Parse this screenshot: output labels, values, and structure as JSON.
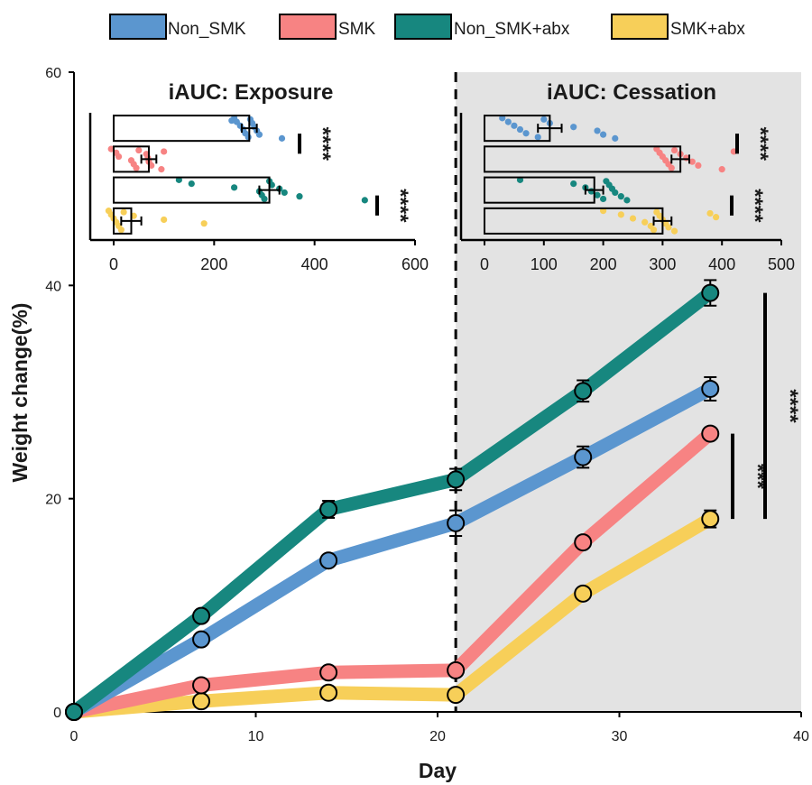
{
  "legend": [
    {
      "name": "Non_SMK",
      "color": "#5b96cf"
    },
    {
      "name": "SMK",
      "color": "#f78383"
    },
    {
      "name": "Non_SMK+abx",
      "color": "#17877f"
    },
    {
      "name": "SMK+abx",
      "color": "#f7cf59"
    }
  ],
  "chart_data": [
    {
      "type": "line",
      "xlabel": "Day",
      "ylabel": "Weight change(%)",
      "xlim": [
        0,
        40
      ],
      "ylim": [
        0,
        60
      ],
      "xticks": [
        0,
        10,
        20,
        30,
        40
      ],
      "yticks": [
        0,
        20,
        40,
        60
      ],
      "x": [
        0,
        7,
        14,
        21,
        28,
        35
      ],
      "event_line_day": 21,
      "shaded_region": [
        21,
        40
      ],
      "series": [
        {
          "name": "Non_SMK+abx",
          "color": "#17877f",
          "values": [
            0,
            9.0,
            19.0,
            21.8,
            30.1,
            39.3
          ],
          "err": [
            0,
            0.3,
            0.8,
            1.0,
            1.0,
            1.2
          ]
        },
        {
          "name": "Non_SMK",
          "color": "#5b96cf",
          "values": [
            0,
            6.8,
            14.2,
            17.7,
            23.9,
            30.3
          ],
          "err": [
            0,
            0.3,
            0.4,
            1.2,
            1.0,
            1.1
          ]
        },
        {
          "name": "SMK",
          "color": "#f78383",
          "values": [
            0,
            2.5,
            3.7,
            3.9,
            15.9,
            26.1
          ],
          "err": [
            0,
            0.3,
            0.3,
            0.3,
            0.4,
            0.4
          ]
        },
        {
          "name": "SMK+abx",
          "color": "#f7cf59",
          "values": [
            0,
            1.0,
            1.8,
            1.6,
            11.1,
            18.1
          ],
          "err": [
            0,
            0.2,
            0.3,
            0.3,
            0.4,
            0.8
          ]
        }
      ],
      "significance": [
        {
          "label": "***",
          "from": "SMK",
          "to": "SMK+abx"
        },
        {
          "label": "****",
          "from": "Non_SMK+abx",
          "to": "SMK+abx"
        }
      ]
    },
    {
      "type": "bar",
      "orientation": "horizontal",
      "title": "iAUC: Exposure",
      "xlim": [
        0,
        600
      ],
      "xticks": [
        0,
        200,
        400,
        600
      ],
      "categories": [
        "Non_SMK",
        "SMK",
        "Non_SMK+abx",
        "SMK+abx"
      ],
      "values": [
        270,
        70,
        310,
        35
      ],
      "err": [
        15,
        15,
        20,
        20
      ],
      "points": [
        [
          240,
          245,
          252,
          258,
          262,
          268,
          272,
          276,
          280,
          285,
          290,
          335,
          235
        ],
        [
          -5,
          5,
          10,
          35,
          40,
          45,
          50,
          65,
          68,
          70,
          75,
          95,
          100
        ],
        [
          130,
          155,
          240,
          290,
          295,
          300,
          310,
          315,
          330,
          340,
          370,
          500
        ],
        [
          -10,
          -5,
          0,
          5,
          10,
          15,
          20,
          40,
          100,
          180
        ]
      ],
      "significance": [
        {
          "label": "****",
          "from": "Non_SMK",
          "to": "SMK"
        },
        {
          "label": "****",
          "from": "Non_SMK+abx",
          "to": "SMK+abx"
        }
      ]
    },
    {
      "type": "bar",
      "orientation": "horizontal",
      "title": "iAUC: Cessation",
      "xlim": [
        0,
        500
      ],
      "xticks": [
        0,
        100,
        200,
        300,
        400,
        500
      ],
      "categories": [
        "Non_SMK",
        "SMK",
        "Non_SMK+abx",
        "SMK+abx"
      ],
      "values": [
        110,
        330,
        185,
        300
      ],
      "err": [
        20,
        15,
        15,
        15
      ],
      "points": [
        [
          30,
          40,
          50,
          60,
          70,
          90,
          100,
          110,
          150,
          190,
          200,
          220
        ],
        [
          290,
          295,
          300,
          305,
          310,
          315,
          320,
          330,
          340,
          350,
          360,
          400,
          420
        ],
        [
          60,
          150,
          170,
          180,
          190,
          200,
          205,
          210,
          215,
          220,
          230,
          240
        ],
        [
          200,
          230,
          250,
          270,
          280,
          285,
          290,
          295,
          300,
          305,
          310,
          320,
          380,
          390
        ]
      ],
      "significance": [
        {
          "label": "****",
          "from": "Non_SMK",
          "to": "SMK"
        },
        {
          "label": "****",
          "from": "Non_SMK+abx",
          "to": "SMK+abx"
        }
      ]
    }
  ]
}
